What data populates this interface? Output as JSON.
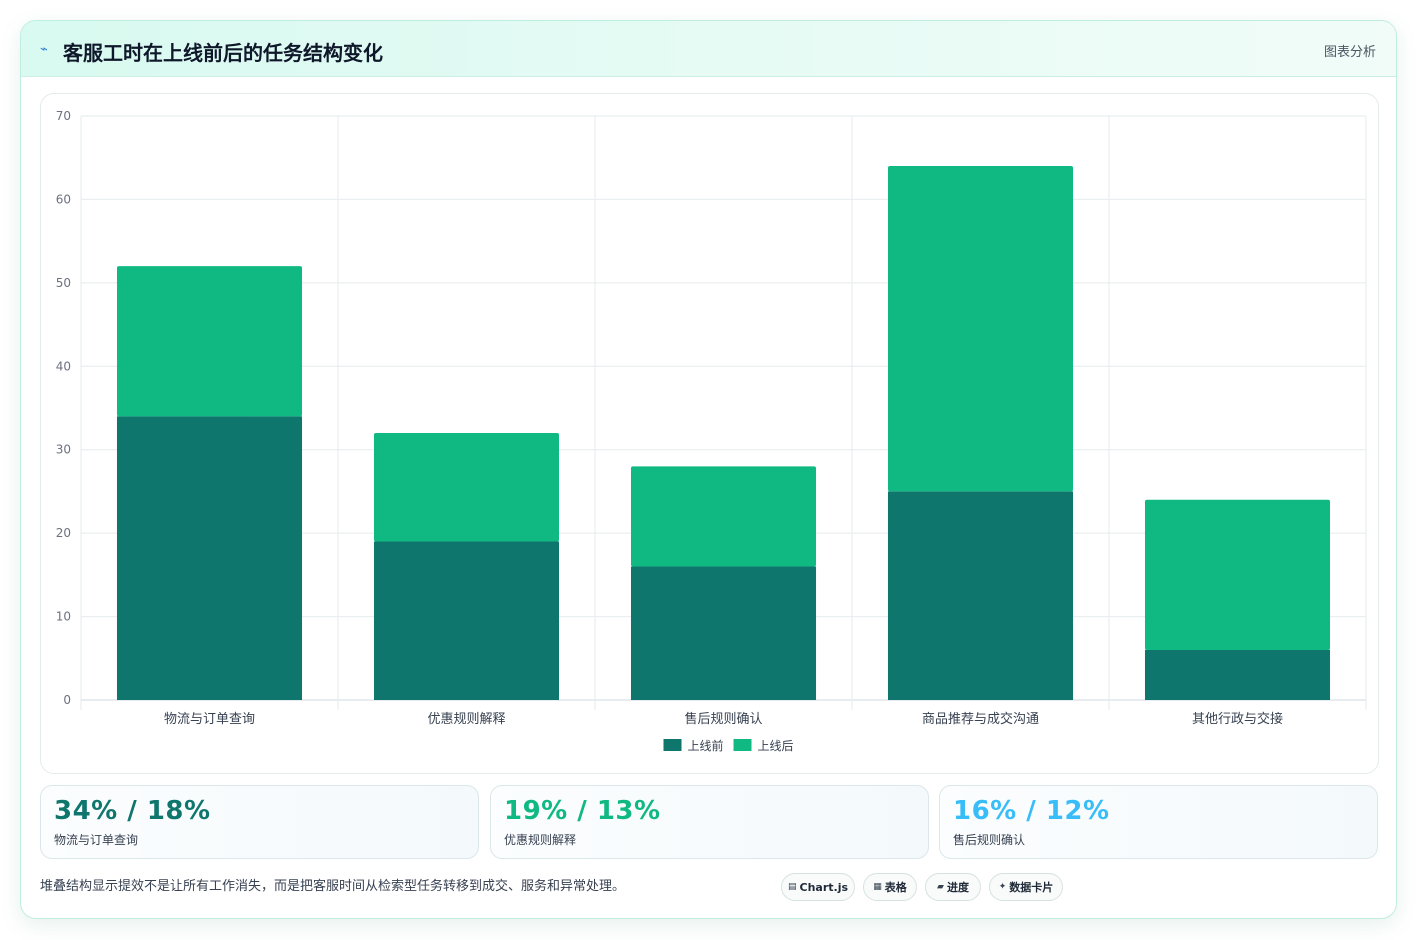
{
  "header": {
    "icon": "chart-line-icon",
    "title": "客服工时在上线前后的任务结构变化",
    "tag": "图表分析"
  },
  "chart_data": {
    "type": "bar",
    "stacked": true,
    "categories": [
      "物流与订单查询",
      "优惠规则解释",
      "售后规则确认",
      "商品推荐与成交沟通",
      "其他行政与交接"
    ],
    "series": [
      {
        "name": "上线前",
        "color": "#0f766e",
        "values": [
          34,
          19,
          16,
          25,
          6
        ]
      },
      {
        "name": "上线后",
        "color": "#10b981",
        "values": [
          18,
          13,
          12,
          39,
          18
        ]
      }
    ],
    "ylim": [
      0,
      70
    ],
    "yticks": [
      0,
      10,
      20,
      30,
      40,
      50,
      60,
      70
    ],
    "grid": true,
    "legend_position": "bottom"
  },
  "stats": [
    {
      "value": "34% / 18%",
      "label": "物流与订单查询",
      "color": "#0f766e"
    },
    {
      "value": "19% / 13%",
      "label": "优惠规则解释",
      "color": "#10b981"
    },
    {
      "value": "16% / 12%",
      "label": "售后规则确认",
      "color": "#38bdf8"
    }
  ],
  "note": "堆叠结构显示提效不是让所有工作消失，而是把客服时间从检索型任务转移到成交、服务和异常处理。",
  "chips": [
    {
      "icon": "▤",
      "icon_name": "chart-icon",
      "label": "Chart.js"
    },
    {
      "icon": "▦",
      "icon_name": "table-icon",
      "label": "表格"
    },
    {
      "icon": "▰",
      "icon_name": "progress-icon",
      "label": "进度"
    },
    {
      "icon": "✦",
      "icon_name": "sparkle-icon",
      "label": "数据卡片"
    }
  ]
}
